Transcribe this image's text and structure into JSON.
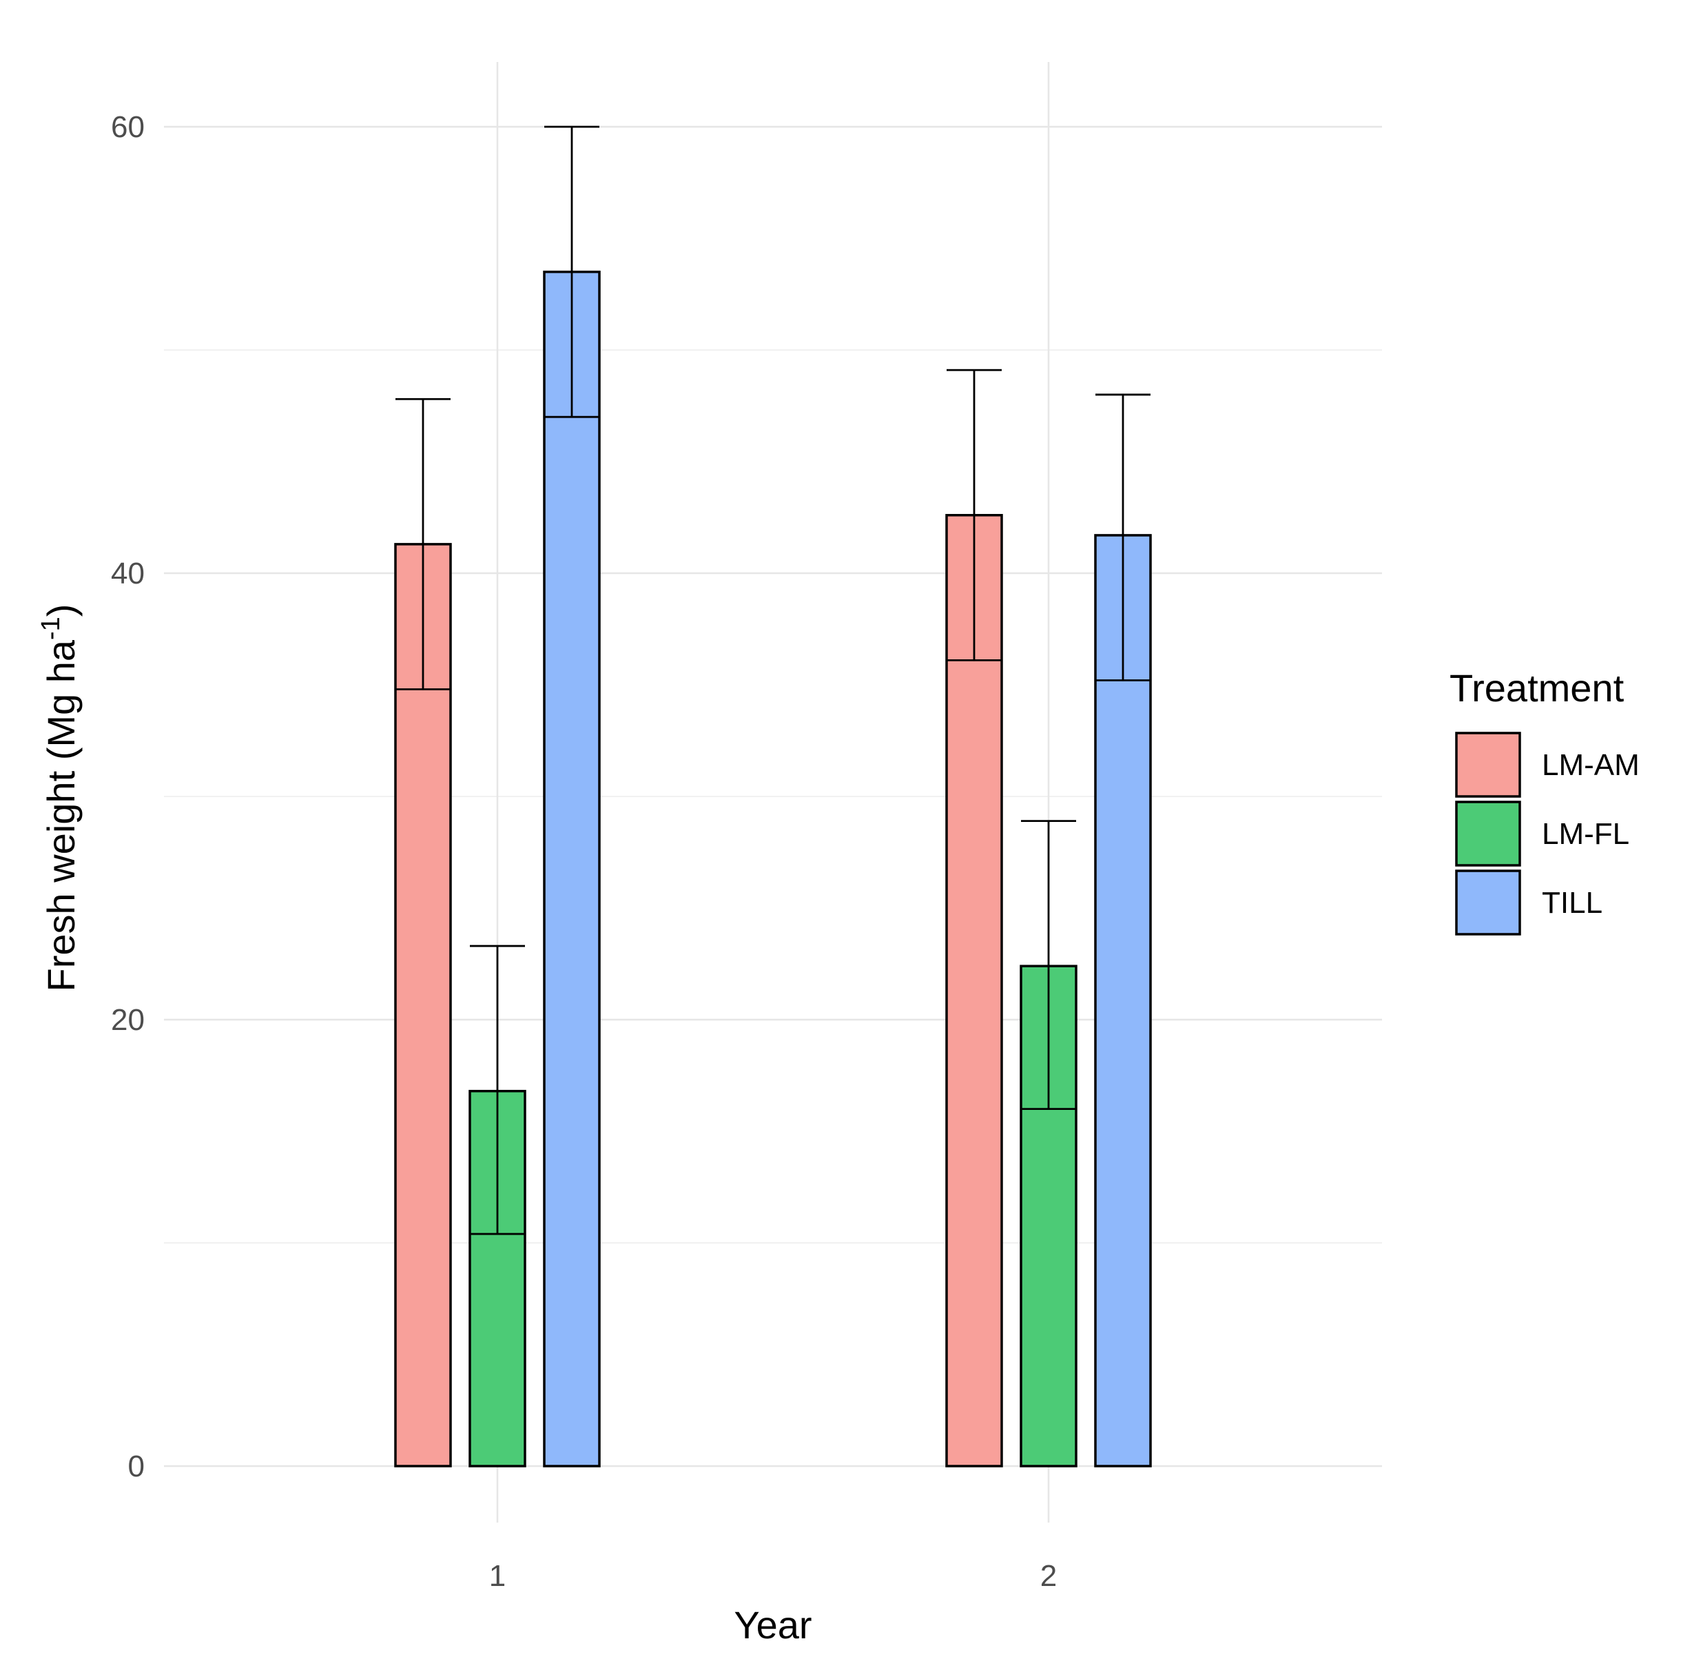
{
  "chart_data": {
    "type": "bar",
    "title": "",
    "xlabel": "Year",
    "ylabel": "Fresh weight (Mg ha",
    "ylabel_superscript": "-1",
    "ylabel_suffix": ")",
    "categories": [
      "1",
      "2"
    ],
    "ylim": [
      0,
      60
    ],
    "yticks": [
      0,
      20,
      40,
      60
    ],
    "grid": true,
    "legend": {
      "title": "Treatment",
      "position": "right",
      "entries": [
        "LM-AM",
        "LM-FL",
        "TILL"
      ]
    },
    "series": [
      {
        "name": "LM-AM",
        "color": "#F8A09A",
        "values": [
          41.3,
          42.6
        ],
        "error_low": [
          34.8,
          36.1
        ],
        "error_high": [
          47.8,
          49.1
        ]
      },
      {
        "name": "LM-FL",
        "color": "#4CCB76",
        "values": [
          16.8,
          22.4
        ],
        "error_low": [
          10.4,
          16.0
        ],
        "error_high": [
          23.3,
          28.9
        ]
      },
      {
        "name": "TILL",
        "color": "#8FB8FB",
        "values": [
          53.5,
          41.7
        ],
        "error_low": [
          47.0,
          35.2
        ],
        "error_high": [
          60.0,
          48.0
        ]
      }
    ]
  }
}
